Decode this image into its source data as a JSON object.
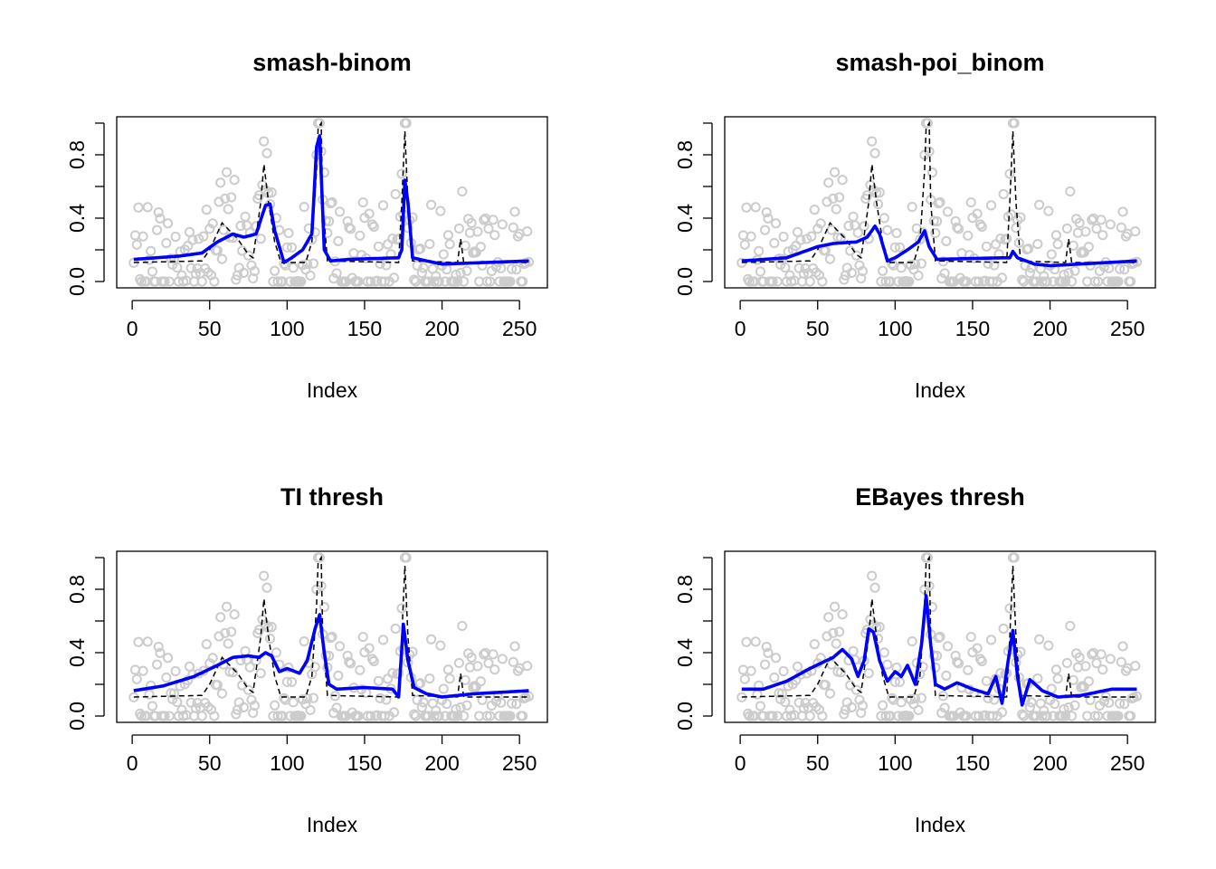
{
  "chart_data": [
    {
      "type": "scatter",
      "title": "smash-binom",
      "xlabel": "Index",
      "ylabel": "",
      "xlim": [
        1,
        256
      ],
      "ylim": [
        0,
        1
      ],
      "xticks": [
        0,
        50,
        100,
        150,
        200,
        250
      ],
      "yticks": [
        0.0,
        0.4,
        0.8
      ],
      "ytick_labels": [
        "0.0",
        "0.4",
        "0.8"
      ],
      "series": [
        {
          "name": "observed",
          "style": "points",
          "color": "#cccccc"
        },
        {
          "name": "true mean",
          "style": "dashed",
          "color": "#000000"
        },
        {
          "name": "estimate",
          "style": "solid",
          "color": "#0000ff",
          "knots": [
            [
              1,
              0.14
            ],
            [
              30,
              0.16
            ],
            [
              45,
              0.18
            ],
            [
              55,
              0.25
            ],
            [
              65,
              0.3
            ],
            [
              72,
              0.28
            ],
            [
              80,
              0.3
            ],
            [
              86,
              0.48
            ],
            [
              89,
              0.49
            ],
            [
              92,
              0.32
            ],
            [
              98,
              0.12
            ],
            [
              103,
              0.15
            ],
            [
              110,
              0.2
            ],
            [
              116,
              0.3
            ],
            [
              119,
              0.85
            ],
            [
              121,
              0.92
            ],
            [
              124,
              0.2
            ],
            [
              128,
              0.13
            ],
            [
              140,
              0.14
            ],
            [
              172,
              0.15
            ],
            [
              174,
              0.2
            ],
            [
              176,
              0.64
            ],
            [
              178,
              0.5
            ],
            [
              181,
              0.15
            ],
            [
              190,
              0.13
            ],
            [
              200,
              0.11
            ],
            [
              256,
              0.13
            ]
          ]
        }
      ]
    },
    {
      "type": "scatter",
      "title": "smash-poi_binom",
      "xlabel": "Index",
      "ylabel": "",
      "xlim": [
        1,
        256
      ],
      "ylim": [
        0,
        1
      ],
      "xticks": [
        0,
        50,
        100,
        150,
        200,
        250
      ],
      "yticks": [
        0.0,
        0.4,
        0.8
      ],
      "ytick_labels": [
        "0.0",
        "0.4",
        "0.8"
      ],
      "series": [
        {
          "name": "observed",
          "style": "points",
          "color": "#cccccc"
        },
        {
          "name": "true mean",
          "style": "dashed",
          "color": "#000000"
        },
        {
          "name": "estimate",
          "style": "solid",
          "color": "#0000ff",
          "knots": [
            [
              1,
              0.13
            ],
            [
              30,
              0.15
            ],
            [
              50,
              0.22
            ],
            [
              60,
              0.24
            ],
            [
              75,
              0.25
            ],
            [
              82,
              0.28
            ],
            [
              87,
              0.35
            ],
            [
              90,
              0.3
            ],
            [
              95,
              0.13
            ],
            [
              100,
              0.15
            ],
            [
              108,
              0.2
            ],
            [
              115,
              0.25
            ],
            [
              119,
              0.32
            ],
            [
              122,
              0.22
            ],
            [
              127,
              0.14
            ],
            [
              170,
              0.15
            ],
            [
              174,
              0.15
            ],
            [
              176,
              0.19
            ],
            [
              179,
              0.15
            ],
            [
              190,
              0.11
            ],
            [
              200,
              0.1
            ],
            [
              256,
              0.13
            ]
          ]
        }
      ]
    },
    {
      "type": "scatter",
      "title": "TI thresh",
      "xlabel": "Index",
      "ylabel": "",
      "xlim": [
        1,
        256
      ],
      "ylim": [
        0,
        1
      ],
      "xticks": [
        0,
        50,
        100,
        150,
        200,
        250
      ],
      "yticks": [
        0.0,
        0.4,
        0.8
      ],
      "ytick_labels": [
        "0.0",
        "0.4",
        "0.8"
      ],
      "series": [
        {
          "name": "observed",
          "style": "points",
          "color": "#cccccc"
        },
        {
          "name": "true mean",
          "style": "dashed",
          "color": "#000000"
        },
        {
          "name": "estimate",
          "style": "solid",
          "color": "#0000ff",
          "knots": [
            [
              1,
              0.16
            ],
            [
              20,
              0.19
            ],
            [
              40,
              0.25
            ],
            [
              55,
              0.32
            ],
            [
              65,
              0.37
            ],
            [
              75,
              0.38
            ],
            [
              82,
              0.37
            ],
            [
              86,
              0.4
            ],
            [
              90,
              0.38
            ],
            [
              95,
              0.28
            ],
            [
              100,
              0.3
            ],
            [
              108,
              0.27
            ],
            [
              113,
              0.35
            ],
            [
              118,
              0.55
            ],
            [
              121,
              0.64
            ],
            [
              124,
              0.4
            ],
            [
              127,
              0.2
            ],
            [
              132,
              0.17
            ],
            [
              150,
              0.18
            ],
            [
              168,
              0.17
            ],
            [
              172,
              0.12
            ],
            [
              175,
              0.58
            ],
            [
              178,
              0.35
            ],
            [
              182,
              0.18
            ],
            [
              190,
              0.14
            ],
            [
              200,
              0.12
            ],
            [
              220,
              0.14
            ],
            [
              256,
              0.16
            ]
          ]
        }
      ]
    },
    {
      "type": "scatter",
      "title": "EBayes thresh",
      "xlabel": "Index",
      "ylabel": "",
      "xlim": [
        1,
        256
      ],
      "ylim": [
        0,
        1
      ],
      "xticks": [
        0,
        50,
        100,
        150,
        200,
        250
      ],
      "yticks": [
        0.0,
        0.4,
        0.8
      ],
      "ytick_labels": [
        "0.0",
        "0.4",
        "0.8"
      ],
      "series": [
        {
          "name": "observed",
          "style": "points",
          "color": "#cccccc"
        },
        {
          "name": "true mean",
          "style": "dashed",
          "color": "#000000"
        },
        {
          "name": "estimate",
          "style": "solid",
          "color": "#0000ff",
          "knots": [
            [
              1,
              0.17
            ],
            [
              15,
              0.17
            ],
            [
              30,
              0.22
            ],
            [
              45,
              0.3
            ],
            [
              60,
              0.37
            ],
            [
              66,
              0.42
            ],
            [
              72,
              0.36
            ],
            [
              76,
              0.25
            ],
            [
              80,
              0.35
            ],
            [
              83,
              0.55
            ],
            [
              86,
              0.53
            ],
            [
              90,
              0.35
            ],
            [
              95,
              0.22
            ],
            [
              100,
              0.28
            ],
            [
              104,
              0.25
            ],
            [
              108,
              0.32
            ],
            [
              113,
              0.2
            ],
            [
              117,
              0.45
            ],
            [
              120,
              0.76
            ],
            [
              123,
              0.45
            ],
            [
              126,
              0.2
            ],
            [
              132,
              0.17
            ],
            [
              140,
              0.21
            ],
            [
              150,
              0.17
            ],
            [
              160,
              0.14
            ],
            [
              165,
              0.25
            ],
            [
              169,
              0.08
            ],
            [
              173,
              0.35
            ],
            [
              176,
              0.54
            ],
            [
              179,
              0.25
            ],
            [
              182,
              0.07
            ],
            [
              187,
              0.23
            ],
            [
              195,
              0.16
            ],
            [
              205,
              0.12
            ],
            [
              220,
              0.13
            ],
            [
              240,
              0.17
            ],
            [
              256,
              0.17
            ]
          ]
        }
      ]
    }
  ],
  "shared_data": {
    "true_mean_knots": [
      [
        1,
        0.12
      ],
      [
        45,
        0.13
      ],
      [
        50,
        0.2
      ],
      [
        58,
        0.37
      ],
      [
        62,
        0.33
      ],
      [
        68,
        0.27
      ],
      [
        75,
        0.17
      ],
      [
        78,
        0.15
      ],
      [
        83,
        0.5
      ],
      [
        85,
        0.74
      ],
      [
        88,
        0.5
      ],
      [
        92,
        0.25
      ],
      [
        96,
        0.12
      ],
      [
        112,
        0.12
      ],
      [
        116,
        0.25
      ],
      [
        119,
        0.7
      ],
      [
        120,
        0.97
      ],
      [
        122,
        1.0
      ],
      [
        123,
        0.5
      ],
      [
        126,
        0.13
      ],
      [
        172,
        0.12
      ],
      [
        174,
        0.5
      ],
      [
        176,
        0.95
      ],
      [
        178,
        0.5
      ],
      [
        181,
        0.13
      ],
      [
        210,
        0.12
      ],
      [
        212,
        0.27
      ],
      [
        214,
        0.12
      ],
      [
        256,
        0.12
      ]
    ],
    "observed_seed": 7
  }
}
